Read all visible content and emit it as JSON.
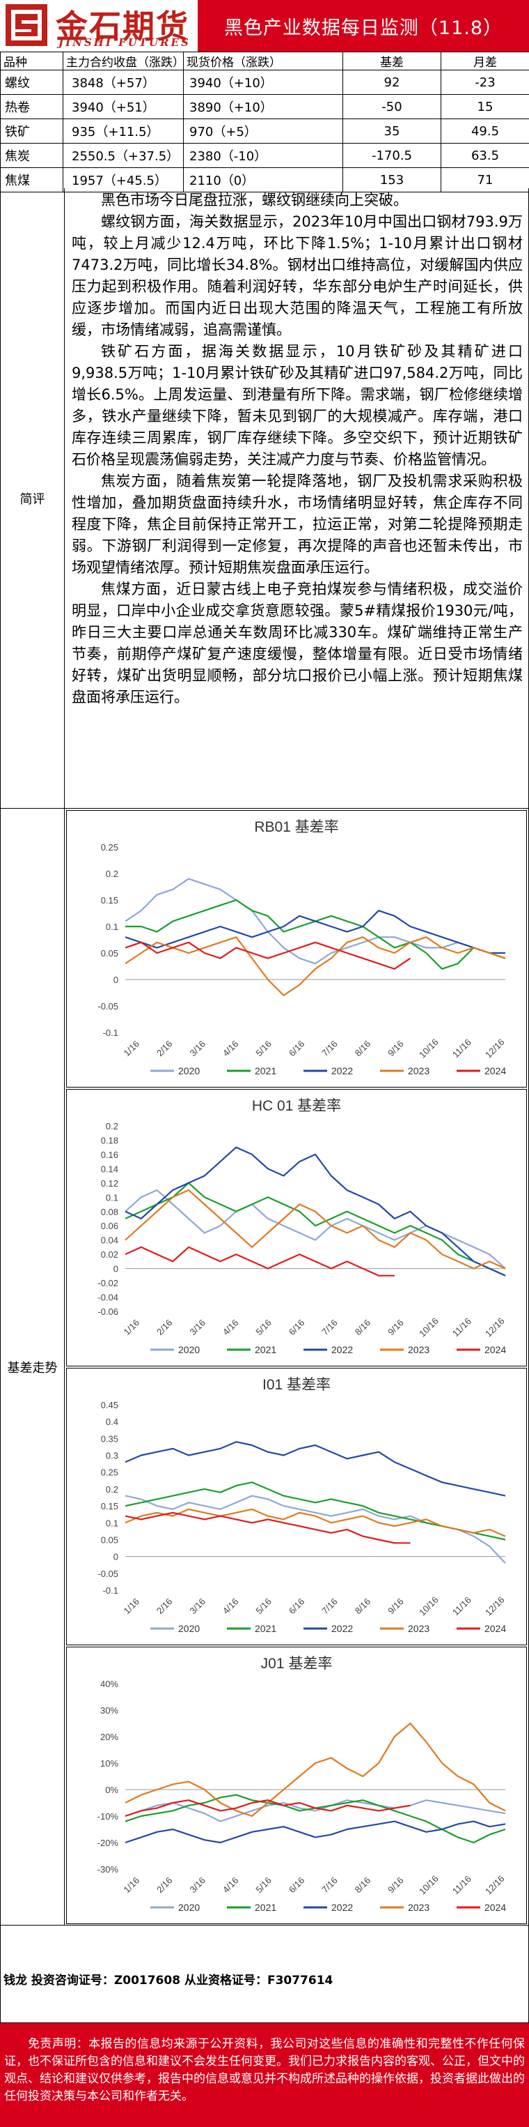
{
  "header": {
    "logo_cn": "金石期货",
    "logo_en": "JINSHI FUTURES",
    "title": "黑色产业数据每日监测（11.8）"
  },
  "table": {
    "headers": [
      "品种",
      "主力合约收盘（涨跌）",
      "现货价格（涨跌）",
      "基差",
      "月差"
    ],
    "rows": [
      {
        "name": "螺纹",
        "futures": "3848（+57）",
        "spot": "3940（+10）",
        "basis": "92",
        "month": "-23"
      },
      {
        "name": "热卷",
        "futures": "3940（+51）",
        "spot": "3890（+10）",
        "basis": "-50",
        "month": "15"
      },
      {
        "name": "铁矿",
        "futures": "935（+11.5）",
        "spot": "970（+5）",
        "basis": "35",
        "month": "49.5"
      },
      {
        "name": "焦炭",
        "futures": "2550.5（+37.5）",
        "spot": "2380（-10）",
        "basis": "-170.5",
        "month": "63.5"
      },
      {
        "name": "焦煤",
        "futures": "1957（+45.5）",
        "spot": "2110（0）",
        "basis": "153",
        "month": "71"
      }
    ]
  },
  "review": {
    "label": "简评",
    "paragraphs": [
      "黑色市场今日尾盘拉涨，螺纹钢继续向上突破。",
      "螺纹钢方面，海关数据显示，2023年10月中国出口钢材793.9万吨，较上月减少12.4万吨，环比下降1.5%；1-10月累计出口钢材7473.2万吨，同比增长34.8%。钢材出口维持高位，对缓解国内供应压力起到积极作用。随着利润好转，华东部分电炉生产时间延长，供应逐步增加。而国内近日出现大范围的降温天气，工程施工有所放缓，市场情绪减弱，追高需谨慎。",
      "铁矿石方面，据海关数据显示，10月铁矿砂及其精矿进口9,938.5万吨；1-10月累计铁矿砂及其精矿进口97,584.2万吨，同比增长6.5%。上周发运量、到港量有所下降。需求端，钢厂检修继续增多，铁水产量继续下降，暂未见到钢厂的大规模减产。库存端，港口库存连续三周累库，钢厂库存继续下降。多空交织下，预计近期铁矿石价格呈现震荡偏弱走势，关注减产力度与节奏、价格监管情况。",
      "焦炭方面，随着焦炭第一轮提降落地，钢厂及投机需求采购积极性增加，叠加期货盘面持续升水，市场情绪明显好转，焦企库存不同程度下降，焦企目前保持正常开工，拉运正常，对第二轮提降预期走弱。下游钢厂利润得到一定修复，再次提降的声音也还暂未传出，市场观望情绪浓厚。预计短期焦炭盘面承压运行。",
      "焦煤方面，近日蒙古线上电子竞拍煤炭参与情绪积极，成交溢价明显，口岸中小企业成交拿货意愿较强。蒙5#精煤报价1930元/吨，昨日三大主要口岸总通关车数周环比减330车。煤矿端维持正常生产节奏，前期停产煤矿复产速度缓慢，整体增量有限。近日受市场情绪好转，煤矿出货明显顺畅，部分坑口报价已小幅上涨。预计短期焦煤盘面将承压运行。"
    ]
  },
  "basis_label": "基差走势",
  "x_ticks": [
    "1/16",
    "2/16",
    "3/16",
    "4/16",
    "5/16",
    "6/16",
    "7/16",
    "8/16",
    "9/16",
    "10/16",
    "11/16",
    "12/16"
  ],
  "years": [
    "2020",
    "2021",
    "2022",
    "2023",
    "2024"
  ],
  "colors": {
    "2020": "#8ea7d6",
    "2021": "#1a9e2b",
    "2022": "#2448a8",
    "2023": "#e07a1f",
    "2024": "#e31a1c",
    "brand": "#d7001a"
  },
  "charts": [
    {
      "chart_data": {
        "type": "line",
        "title": "RB01 基差率",
        "ylim": [
          -0.1,
          0.25
        ],
        "yticks": [
          "-0.1",
          "-0.05",
          "0",
          "0.05",
          "0.1",
          "0.15",
          "0.2",
          "0.25"
        ],
        "series": [
          {
            "name": "2020",
            "values": [
              0.11,
              0.13,
              0.16,
              0.17,
              0.19,
              0.18,
              0.17,
              0.15,
              0.13,
              0.09,
              0.06,
              0.04,
              0.03,
              0.05,
              0.06,
              0.07,
              0.08,
              0.08,
              0.07,
              0.06,
              0.06,
              0.07,
              0.06,
              0.05,
              0.04
            ]
          },
          {
            "name": "2021",
            "values": [
              0.1,
              0.1,
              0.09,
              0.11,
              0.12,
              0.13,
              0.14,
              0.15,
              0.13,
              0.12,
              0.09,
              0.1,
              0.11,
              0.12,
              0.11,
              0.1,
              0.08,
              0.06,
              0.07,
              0.05,
              0.02,
              0.03,
              0.06,
              0.05,
              0.04
            ]
          },
          {
            "name": "2022",
            "values": [
              0.08,
              0.07,
              0.06,
              0.07,
              0.08,
              0.09,
              0.1,
              0.09,
              0.08,
              0.09,
              0.1,
              0.12,
              0.11,
              0.1,
              0.09,
              0.1,
              0.13,
              0.12,
              0.1,
              0.09,
              0.08,
              0.07,
              0.06,
              0.05,
              0.05
            ]
          },
          {
            "name": "2023",
            "values": [
              0.03,
              0.05,
              0.07,
              0.06,
              0.05,
              0.06,
              0.07,
              0.08,
              0.04,
              0.0,
              -0.03,
              -0.01,
              0.02,
              0.04,
              0.07,
              0.08,
              0.06,
              0.05,
              0.07,
              0.08,
              0.06,
              0.05,
              0.06,
              0.05,
              0.04
            ]
          },
          {
            "name": "2024",
            "values": [
              0.06,
              0.07,
              0.05,
              0.06,
              0.07,
              0.05,
              0.04,
              0.06,
              0.05,
              0.04,
              0.05,
              0.06,
              0.07,
              0.06,
              0.05,
              0.04,
              0.03,
              0.02,
              0.04
            ]
          }
        ]
      }
    },
    {
      "chart_data": {
        "type": "line",
        "title": "HC 01 基差率",
        "ylim": [
          -0.06,
          0.2
        ],
        "yticks": [
          "-0.06",
          "-0.04",
          "-0.02",
          "0",
          "0.02",
          "0.04",
          "0.06",
          "0.08",
          "0.1",
          "0.12",
          "0.14",
          "0.16",
          "0.18",
          "0.2"
        ],
        "series": [
          {
            "name": "2020",
            "values": [
              0.08,
              0.1,
              0.11,
              0.09,
              0.07,
              0.05,
              0.06,
              0.08,
              0.09,
              0.07,
              0.06,
              0.05,
              0.04,
              0.06,
              0.07,
              0.06,
              0.05,
              0.04,
              0.05,
              0.06,
              0.05,
              0.04,
              0.03,
              0.02,
              0.0
            ]
          },
          {
            "name": "2021",
            "values": [
              0.07,
              0.08,
              0.09,
              0.1,
              0.12,
              0.1,
              0.09,
              0.08,
              0.09,
              0.1,
              0.09,
              0.08,
              0.06,
              0.07,
              0.08,
              0.07,
              0.06,
              0.05,
              0.06,
              0.05,
              0.04,
              0.02,
              0.01,
              0.0,
              -0.01
            ]
          },
          {
            "name": "2022",
            "values": [
              0.08,
              0.07,
              0.09,
              0.11,
              0.12,
              0.13,
              0.15,
              0.17,
              0.16,
              0.14,
              0.13,
              0.15,
              0.16,
              0.13,
              0.11,
              0.1,
              0.09,
              0.07,
              0.08,
              0.06,
              0.05,
              0.03,
              0.01,
              0.0,
              -0.01
            ]
          },
          {
            "name": "2023",
            "values": [
              0.04,
              0.06,
              0.08,
              0.1,
              0.11,
              0.09,
              0.07,
              0.05,
              0.03,
              0.05,
              0.07,
              0.09,
              0.08,
              0.06,
              0.05,
              0.06,
              0.04,
              0.03,
              0.05,
              0.04,
              0.02,
              0.01,
              0.0,
              0.01,
              0.0
            ]
          },
          {
            "name": "2024",
            "values": [
              0.02,
              0.03,
              0.02,
              0.01,
              0.03,
              0.02,
              0.01,
              0.02,
              0.01,
              0.0,
              0.01,
              0.02,
              0.01,
              0.0,
              0.01,
              0.0,
              -0.01,
              -0.01
            ]
          }
        ]
      }
    },
    {
      "chart_data": {
        "type": "line",
        "title": "I01 基差率",
        "ylim": [
          -0.1,
          0.45
        ],
        "yticks": [
          "-0.1",
          "-0.05",
          "0",
          "0.05",
          "0.1",
          "0.15",
          "0.2",
          "0.25",
          "0.3",
          "0.35",
          "0.4",
          "0.45"
        ],
        "series": [
          {
            "name": "2020",
            "values": [
              0.18,
              0.17,
              0.15,
              0.14,
              0.16,
              0.15,
              0.14,
              0.16,
              0.18,
              0.17,
              0.15,
              0.14,
              0.13,
              0.12,
              0.13,
              0.14,
              0.12,
              0.11,
              0.12,
              0.1,
              0.09,
              0.08,
              0.06,
              0.03,
              -0.02
            ]
          },
          {
            "name": "2021",
            "values": [
              0.15,
              0.16,
              0.17,
              0.18,
              0.19,
              0.2,
              0.19,
              0.21,
              0.22,
              0.2,
              0.18,
              0.17,
              0.16,
              0.17,
              0.16,
              0.15,
              0.13,
              0.12,
              0.11,
              0.1,
              0.09,
              0.08,
              0.07,
              0.06,
              0.05
            ]
          },
          {
            "name": "2022",
            "values": [
              0.28,
              0.3,
              0.31,
              0.32,
              0.3,
              0.31,
              0.32,
              0.34,
              0.33,
              0.31,
              0.3,
              0.32,
              0.33,
              0.31,
              0.29,
              0.3,
              0.31,
              0.28,
              0.26,
              0.24,
              0.22,
              0.21,
              0.2,
              0.19,
              0.18
            ]
          },
          {
            "name": "2023",
            "values": [
              0.1,
              0.12,
              0.13,
              0.12,
              0.14,
              0.13,
              0.12,
              0.13,
              0.14,
              0.12,
              0.11,
              0.13,
              0.12,
              0.1,
              0.11,
              0.12,
              0.1,
              0.09,
              0.1,
              0.11,
              0.09,
              0.08,
              0.07,
              0.08,
              0.06
            ]
          },
          {
            "name": "2024",
            "values": [
              0.12,
              0.11,
              0.12,
              0.13,
              0.12,
              0.11,
              0.12,
              0.11,
              0.1,
              0.11,
              0.1,
              0.09,
              0.08,
              0.07,
              0.08,
              0.06,
              0.05,
              0.04,
              0.04
            ]
          }
        ]
      }
    },
    {
      "chart_data": {
        "type": "line",
        "title": "J01 基差率",
        "ylim": [
          -0.3,
          0.4
        ],
        "yticks": [
          "-30%",
          "-20%",
          "-10%",
          "0%",
          "10%",
          "20%",
          "30%",
          "40%"
        ],
        "series": [
          {
            "name": "2020",
            "values": [
              -0.1,
              -0.08,
              -0.06,
              -0.05,
              -0.07,
              -0.09,
              -0.12,
              -0.1,
              -0.08,
              -0.06,
              -0.05,
              -0.07,
              -0.08,
              -0.06,
              -0.04,
              -0.05,
              -0.06,
              -0.07,
              -0.06,
              -0.04,
              -0.05,
              -0.06,
              -0.07,
              -0.08,
              -0.09
            ]
          },
          {
            "name": "2021",
            "values": [
              -0.12,
              -0.1,
              -0.09,
              -0.08,
              -0.06,
              -0.05,
              -0.03,
              -0.02,
              -0.04,
              -0.05,
              -0.06,
              -0.08,
              -0.07,
              -0.06,
              -0.05,
              -0.04,
              -0.06,
              -0.08,
              -0.1,
              -0.12,
              -0.15,
              -0.18,
              -0.2,
              -0.17,
              -0.15
            ]
          },
          {
            "name": "2022",
            "values": [
              -0.2,
              -0.18,
              -0.16,
              -0.15,
              -0.17,
              -0.19,
              -0.2,
              -0.18,
              -0.16,
              -0.15,
              -0.14,
              -0.16,
              -0.18,
              -0.17,
              -0.15,
              -0.14,
              -0.13,
              -0.12,
              -0.14,
              -0.16,
              -0.15,
              -0.13,
              -0.12,
              -0.14,
              -0.13
            ]
          },
          {
            "name": "2023",
            "values": [
              -0.05,
              -0.02,
              0.0,
              0.02,
              0.03,
              0.0,
              -0.05,
              -0.08,
              -0.1,
              -0.05,
              0.0,
              0.05,
              0.1,
              0.12,
              0.08,
              0.05,
              0.1,
              0.2,
              0.25,
              0.18,
              0.1,
              0.05,
              0.02,
              -0.05,
              -0.08
            ]
          },
          {
            "name": "2024",
            "values": [
              -0.1,
              -0.08,
              -0.07,
              -0.05,
              -0.04,
              -0.06,
              -0.08,
              -0.07,
              -0.05,
              -0.04,
              -0.06,
              -0.05,
              -0.07,
              -0.08,
              -0.06,
              -0.07,
              -0.08,
              -0.07,
              -0.06
            ]
          }
        ]
      }
    }
  ],
  "footer": {
    "analyst": "钱龙 投资咨询证号：Z0017608 从业资格证号：F3077614",
    "disclaimer": "免责声明：本报告的信息均来源于公开资料，我公司对这些信息的准确性和完整性不作任何保证，也不保证所包含的信息和建议不会发生任何变更。我们已力求报告内容的客观、公正，但文中的观点、结论和建议仅供参考，报告中的信息或意见并不构成所述品种的操作依据，投资者据此做出的任何投资决策与本公司和作者无关。"
  }
}
